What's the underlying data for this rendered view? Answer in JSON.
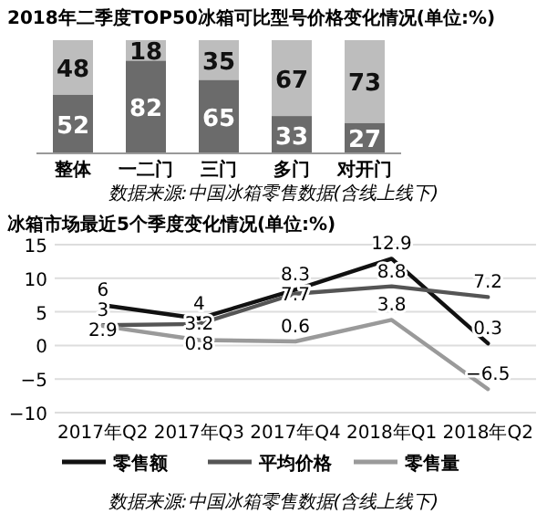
{
  "chart_data": [
    {
      "type": "bar",
      "title": "2018年二季度TOP50冰箱可比型号价格变化情况(单位:%)",
      "stacked": true,
      "data_labels": true,
      "categories": [
        "整体",
        "一二门",
        "三门",
        "多门",
        "对开门"
      ],
      "series": [
        {
          "color": "#6b6b6b",
          "values": [
            52,
            82,
            65,
            33,
            27
          ]
        },
        {
          "color": "#bdbdbd",
          "values": [
            48,
            18,
            35,
            67,
            73
          ]
        }
      ],
      "annotations": [
        "数据来源:中国冰箱零售数据(含线上线下)"
      ]
    },
    {
      "type": "line",
      "title": "冰箱市场最近5个季度变化情况(单位:%)",
      "data_labels": true,
      "categories": [
        "2017年Q2",
        "2017年Q3",
        "2017年Q4",
        "2018年Q1",
        "2018年Q2"
      ],
      "series": [
        {
          "name": "零售额",
          "color": "#111111",
          "values": [
            6,
            4,
            8.3,
            12.9,
            0.3
          ]
        },
        {
          "name": "平均价格",
          "color": "#555555",
          "values": [
            3,
            3.2,
            7.7,
            8.8,
            7.2
          ]
        },
        {
          "name": "零售量",
          "color": "#9a9a9a",
          "values": [
            2.9,
            0.8,
            0.6,
            3.8,
            -6.5
          ]
        }
      ],
      "ylim": [
        -10,
        15
      ],
      "yticks": [
        -10,
        -5,
        0,
        5,
        10,
        15
      ],
      "grid": "y",
      "legend": "bottom",
      "annotations": [
        "数据来源:中国冰箱零售数据(含线上线下)"
      ]
    }
  ]
}
